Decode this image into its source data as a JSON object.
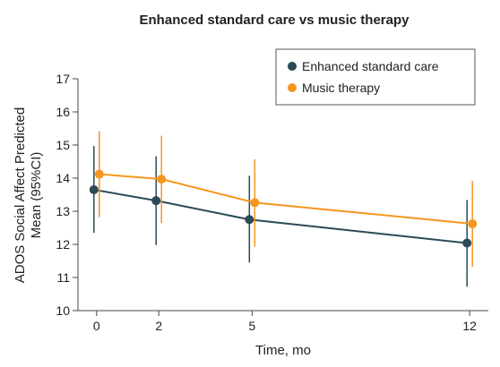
{
  "chart_data": {
    "type": "line",
    "title": "Enhanced standard care vs music therapy",
    "xlabel": "Time, mo",
    "ylabel_line1": "ADOS Social Affect Predicted",
    "ylabel_line2": "Mean (95%CI)",
    "x": [
      0,
      2,
      5,
      12
    ],
    "x_tick_labels": [
      "0",
      "2",
      "5",
      "12"
    ],
    "xlim": [
      -0.6,
      12.6
    ],
    "ylim": [
      10,
      17
    ],
    "y_ticks": [
      10,
      11,
      12,
      13,
      14,
      15,
      16,
      17
    ],
    "y_tick_labels": [
      "10",
      "11",
      "12",
      "13",
      "14",
      "15",
      "16",
      "17"
    ],
    "grid": false,
    "legend_position": "top-right",
    "series": [
      {
        "name": "Enhanced standard care",
        "color": "#2b4a57",
        "values": [
          13.65,
          13.32,
          12.75,
          12.04
        ],
        "ci_low": [
          12.35,
          11.98,
          11.45,
          10.72
        ],
        "ci_high": [
          14.97,
          14.66,
          14.07,
          13.34
        ]
      },
      {
        "name": "Music therapy",
        "color": "#f5961e",
        "values": [
          14.12,
          13.97,
          13.26,
          12.62
        ],
        "ci_low": [
          12.82,
          12.64,
          11.93,
          11.32
        ],
        "ci_high": [
          15.42,
          15.28,
          14.57,
          13.92
        ]
      }
    ]
  }
}
